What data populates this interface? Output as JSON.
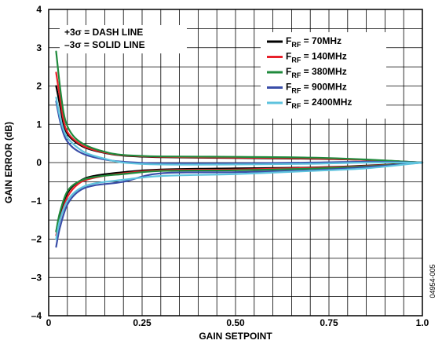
{
  "chart_data": {
    "type": "line",
    "xlabel": "GAIN SETPOINT",
    "ylabel": "GAIN ERROR (dB)",
    "xlim": [
      0,
      1.0
    ],
    "ylim": [
      -4,
      4
    ],
    "x_ticks": [
      {
        "value": 0,
        "label": "0"
      },
      {
        "value": 0.25,
        "label": "0.25"
      },
      {
        "value": 0.5,
        "label": "0.50"
      },
      {
        "value": 0.75,
        "label": "0.75"
      },
      {
        "value": 1.0,
        "label": "1.0"
      }
    ],
    "y_ticks": [
      {
        "value": 4,
        "label": "4"
      },
      {
        "value": 3,
        "label": "3"
      },
      {
        "value": 2,
        "label": "2"
      },
      {
        "value": 1,
        "label": "1"
      },
      {
        "value": 0,
        "label": "0"
      },
      {
        "value": -1,
        "label": "–1"
      },
      {
        "value": -2,
        "label": "–2"
      },
      {
        "value": -3,
        "label": "–3"
      },
      {
        "value": -4,
        "label": "–4"
      }
    ],
    "x_minor_step": 0.05,
    "y_minor_step": 0.5,
    "grid": true,
    "legend_position": "top-right",
    "notes": [
      "+3σ = DASH LINE",
      "–3σ = SOLID LINE"
    ],
    "series": [
      {
        "name": "F_RF = 70MHz",
        "legend_main": "F",
        "legend_sub": "RF",
        "legend_rest": " = 70MHz",
        "color": "#000000",
        "upper": [
          [
            0.02,
            2.0
          ],
          [
            0.03,
            1.5
          ],
          [
            0.04,
            1.0
          ],
          [
            0.05,
            0.75
          ],
          [
            0.07,
            0.55
          ],
          [
            0.1,
            0.38
          ],
          [
            0.15,
            0.25
          ],
          [
            0.2,
            0.18
          ],
          [
            0.3,
            0.14
          ],
          [
            0.5,
            0.12
          ],
          [
            0.7,
            0.1
          ],
          [
            0.85,
            0.07
          ],
          [
            1.0,
            0.0
          ]
        ],
        "lower": [
          [
            0.02,
            -1.8
          ],
          [
            0.03,
            -1.4
          ],
          [
            0.05,
            -0.8
          ],
          [
            0.08,
            -0.5
          ],
          [
            0.12,
            -0.35
          ],
          [
            0.2,
            -0.25
          ],
          [
            0.3,
            -0.18
          ],
          [
            0.5,
            -0.15
          ],
          [
            0.7,
            -0.13
          ],
          [
            0.85,
            -0.08
          ],
          [
            1.0,
            0.0
          ]
        ]
      },
      {
        "name": "F_RF = 140MHz",
        "legend_main": "F",
        "legend_sub": "RF",
        "legend_rest": " = 140MHz",
        "color": "#e8202a",
        "upper": [
          [
            0.02,
            2.35
          ],
          [
            0.03,
            1.7
          ],
          [
            0.04,
            1.1
          ],
          [
            0.05,
            0.8
          ],
          [
            0.07,
            0.58
          ],
          [
            0.1,
            0.4
          ],
          [
            0.15,
            0.26
          ],
          [
            0.2,
            0.19
          ],
          [
            0.3,
            0.15
          ],
          [
            0.5,
            0.13
          ],
          [
            0.7,
            0.11
          ],
          [
            0.85,
            0.07
          ],
          [
            1.0,
            0.0
          ]
        ],
        "lower": [
          [
            0.02,
            -1.9
          ],
          [
            0.03,
            -1.5
          ],
          [
            0.05,
            -0.9
          ],
          [
            0.08,
            -0.55
          ],
          [
            0.12,
            -0.4
          ],
          [
            0.2,
            -0.28
          ],
          [
            0.3,
            -0.2
          ],
          [
            0.5,
            -0.18
          ],
          [
            0.7,
            -0.14
          ],
          [
            0.85,
            -0.09
          ],
          [
            1.0,
            0.0
          ]
        ]
      },
      {
        "name": "F_RF = 380MHz",
        "legend_main": "F",
        "legend_sub": "RF",
        "legend_rest": " = 380MHz",
        "color": "#1f8a3c",
        "upper": [
          [
            0.02,
            2.9
          ],
          [
            0.03,
            2.0
          ],
          [
            0.04,
            1.3
          ],
          [
            0.05,
            0.95
          ],
          [
            0.07,
            0.65
          ],
          [
            0.1,
            0.45
          ],
          [
            0.15,
            0.28
          ],
          [
            0.2,
            0.2
          ],
          [
            0.3,
            0.16
          ],
          [
            0.5,
            0.15
          ],
          [
            0.7,
            0.13
          ],
          [
            0.85,
            0.08
          ],
          [
            1.0,
            0.0
          ]
        ],
        "lower": [
          [
            0.02,
            -1.8
          ],
          [
            0.03,
            -1.3
          ],
          [
            0.05,
            -0.75
          ],
          [
            0.08,
            -0.5
          ],
          [
            0.12,
            -0.38
          ],
          [
            0.2,
            -0.3
          ],
          [
            0.3,
            -0.22
          ],
          [
            0.5,
            -0.2
          ],
          [
            0.7,
            -0.16
          ],
          [
            0.85,
            -0.1
          ],
          [
            1.0,
            0.0
          ]
        ]
      },
      {
        "name": "F_RF = 900MHz",
        "legend_main": "F",
        "legend_sub": "RF",
        "legend_rest": " = 900MHz",
        "color": "#3a4ea8",
        "upper": [
          [
            0.02,
            1.6
          ],
          [
            0.03,
            1.1
          ],
          [
            0.04,
            0.75
          ],
          [
            0.05,
            0.55
          ],
          [
            0.07,
            0.35
          ],
          [
            0.1,
            0.2
          ],
          [
            0.15,
            0.08
          ],
          [
            0.2,
            0.02
          ],
          [
            0.3,
            -0.02
          ],
          [
            0.5,
            -0.02
          ],
          [
            0.7,
            0.0
          ],
          [
            0.85,
            0.02
          ],
          [
            1.0,
            0.0
          ]
        ],
        "lower": [
          [
            0.02,
            -2.2
          ],
          [
            0.03,
            -1.7
          ],
          [
            0.05,
            -1.1
          ],
          [
            0.08,
            -0.75
          ],
          [
            0.12,
            -0.6
          ],
          [
            0.2,
            -0.5
          ],
          [
            0.3,
            -0.28
          ],
          [
            0.5,
            -0.25
          ],
          [
            0.7,
            -0.2
          ],
          [
            0.85,
            -0.12
          ],
          [
            1.0,
            0.0
          ]
        ]
      },
      {
        "name": "F_RF = 2400MHz",
        "legend_main": "F",
        "legend_sub": "RF",
        "legend_rest": " = 2400MHz",
        "color": "#5ec3de",
        "upper": [
          [
            0.02,
            1.7
          ],
          [
            0.03,
            1.2
          ],
          [
            0.04,
            0.85
          ],
          [
            0.05,
            0.65
          ],
          [
            0.07,
            0.45
          ],
          [
            0.1,
            0.25
          ],
          [
            0.15,
            0.1
          ],
          [
            0.2,
            0.0
          ],
          [
            0.3,
            -0.05
          ],
          [
            0.5,
            -0.05
          ],
          [
            0.7,
            -0.03
          ],
          [
            0.85,
            0.0
          ],
          [
            1.0,
            0.0
          ]
        ],
        "lower": [
          [
            0.02,
            -2.0
          ],
          [
            0.03,
            -1.5
          ],
          [
            0.05,
            -1.0
          ],
          [
            0.08,
            -0.7
          ],
          [
            0.12,
            -0.55
          ],
          [
            0.2,
            -0.45
          ],
          [
            0.3,
            -0.35
          ],
          [
            0.5,
            -0.3
          ],
          [
            0.7,
            -0.22
          ],
          [
            0.85,
            -0.15
          ],
          [
            1.0,
            0.0
          ]
        ]
      }
    ],
    "figure_code": "04954-005"
  }
}
